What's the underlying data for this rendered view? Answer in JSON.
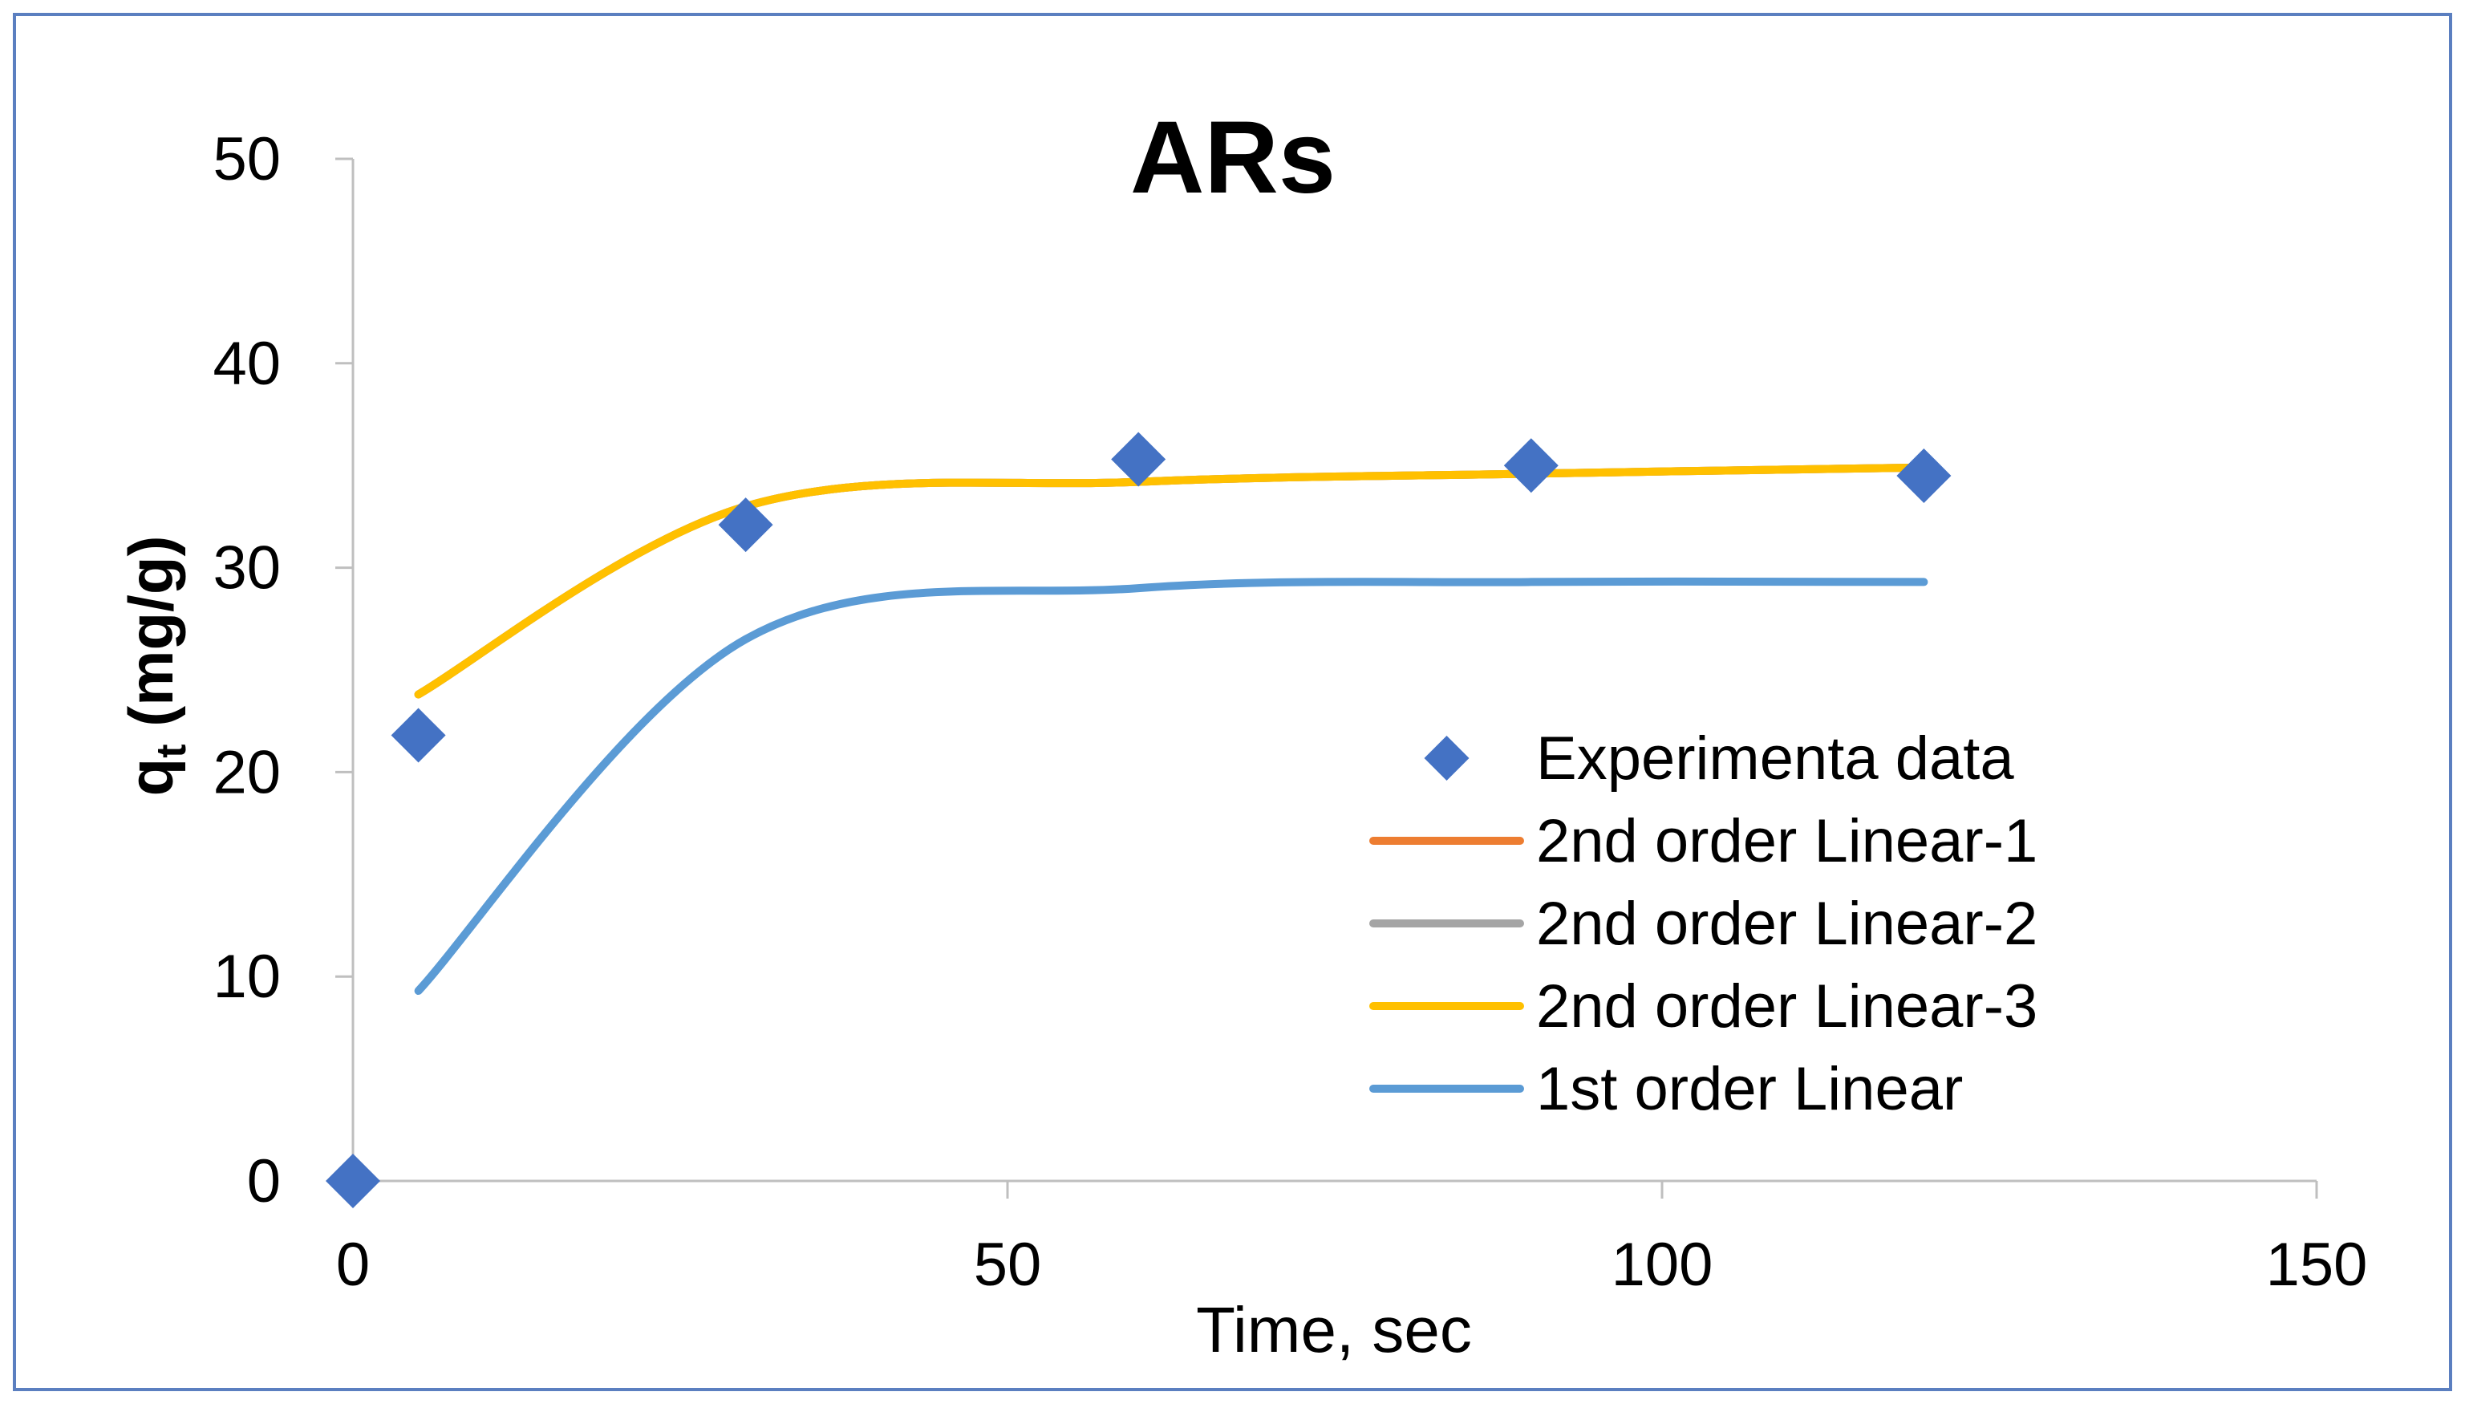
{
  "chart_data": {
    "type": "scatter",
    "title": "ARs",
    "xlabel": "Time, sec",
    "ylabel_main": "q",
    "ylabel_sub": "t",
    "ylabel_unit": " (mg/g)",
    "xlim": [
      0,
      150
    ],
    "ylim": [
      0,
      50
    ],
    "xticks": [
      0,
      50,
      100,
      150
    ],
    "yticks": [
      0,
      10,
      20,
      30,
      40,
      50
    ],
    "grid": false,
    "legend_position": "bottom-right",
    "series": [
      {
        "name": "Experimenta data",
        "kind": "marker",
        "marker": "diamond",
        "color": "#4472C4",
        "x": [
          0,
          5,
          30,
          60,
          90,
          120
        ],
        "y": [
          0,
          21.8,
          32.1,
          35.3,
          35.0,
          34.5
        ]
      },
      {
        "name": "2nd order Linear-1",
        "kind": "line",
        "color": "#ED7D31",
        "x": [
          5,
          30,
          60,
          90,
          120
        ],
        "y": [
          23.8,
          33.0,
          34.2,
          34.6,
          34.9
        ]
      },
      {
        "name": "2nd order Linear-2",
        "kind": "line",
        "color": "#A5A5A5",
        "x": [
          5,
          30,
          60,
          90,
          120
        ],
        "y": [
          23.8,
          33.0,
          34.2,
          34.6,
          34.9
        ]
      },
      {
        "name": "2nd order Linear-3",
        "kind": "line",
        "color": "#FFC000",
        "x": [
          5,
          30,
          60,
          90,
          120
        ],
        "y": [
          23.8,
          33.0,
          34.2,
          34.6,
          34.9
        ]
      },
      {
        "name": "1st order Linear",
        "kind": "line",
        "color": "#5B9BD5",
        "x": [
          5,
          30,
          60,
          90,
          120
        ],
        "y": [
          9.3,
          26.5,
          29.0,
          29.3,
          29.3
        ]
      }
    ]
  }
}
